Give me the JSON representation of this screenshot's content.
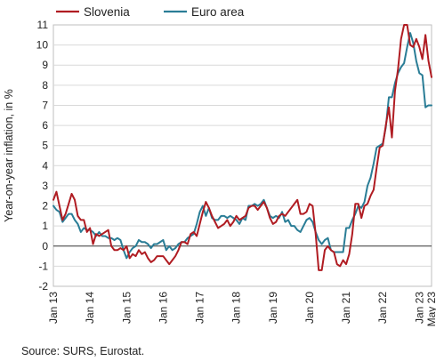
{
  "chart_data": {
    "type": "line",
    "ylabel": "Year-on-year inflation, in %",
    "ylim": [
      -2,
      11
    ],
    "yticks": [
      -2,
      -1,
      0,
      1,
      2,
      3,
      4,
      5,
      6,
      7,
      8,
      9,
      10,
      11
    ],
    "xlim": [
      "2013-01",
      "2023-05"
    ],
    "xticks": [
      "Jan 13",
      "Jan 14",
      "Jan 15",
      "Jan 16",
      "Jan 17",
      "Jan 18",
      "Jan 19",
      "Jan 20",
      "Jan 21",
      "Jan 22",
      "Jan 23",
      "May 23"
    ],
    "xtick_dates": [
      "2013-01",
      "2014-01",
      "2015-01",
      "2016-01",
      "2017-01",
      "2018-01",
      "2019-01",
      "2020-01",
      "2021-01",
      "2022-01",
      "2023-01",
      "2023-05"
    ],
    "grid": "horizontal",
    "legend_position": "top",
    "source": "Source: SURS, Eurostat.",
    "series": [
      {
        "name": "Slovenia",
        "color": "#b01c22",
        "points": [
          [
            "2013-01",
            2.3
          ],
          [
            "2013-02",
            2.7
          ],
          [
            "2013-03",
            2.0
          ],
          [
            "2013-04",
            1.3
          ],
          [
            "2013-05",
            1.6
          ],
          [
            "2013-06",
            2.1
          ],
          [
            "2013-07",
            2.6
          ],
          [
            "2013-08",
            2.3
          ],
          [
            "2013-09",
            1.5
          ],
          [
            "2013-10",
            1.3
          ],
          [
            "2013-11",
            1.3
          ],
          [
            "2013-12",
            0.7
          ],
          [
            "2014-01",
            0.9
          ],
          [
            "2014-02",
            0.1
          ],
          [
            "2014-03",
            0.6
          ],
          [
            "2014-04",
            0.5
          ],
          [
            "2014-05",
            0.6
          ],
          [
            "2014-06",
            0.7
          ],
          [
            "2014-07",
            0.8
          ],
          [
            "2014-08",
            0.0
          ],
          [
            "2014-09",
            -0.2
          ],
          [
            "2014-10",
            -0.2
          ],
          [
            "2014-11",
            -0.1
          ],
          [
            "2014-12",
            -0.2
          ],
          [
            "2015-01",
            0.0
          ],
          [
            "2015-02",
            -0.6
          ],
          [
            "2015-03",
            -0.4
          ],
          [
            "2015-04",
            -0.5
          ],
          [
            "2015-05",
            -0.2
          ],
          [
            "2015-06",
            -0.4
          ],
          [
            "2015-07",
            -0.3
          ],
          [
            "2015-08",
            -0.6
          ],
          [
            "2015-09",
            -0.8
          ],
          [
            "2015-10",
            -0.7
          ],
          [
            "2015-11",
            -0.5
          ],
          [
            "2015-12",
            -0.5
          ],
          [
            "2016-01",
            -0.5
          ],
          [
            "2016-02",
            -0.7
          ],
          [
            "2016-03",
            -0.9
          ],
          [
            "2016-04",
            -0.7
          ],
          [
            "2016-05",
            -0.5
          ],
          [
            "2016-06",
            -0.2
          ],
          [
            "2016-07",
            0.2
          ],
          [
            "2016-08",
            0.2
          ],
          [
            "2016-09",
            0.1
          ],
          [
            "2016-10",
            0.6
          ],
          [
            "2016-11",
            0.7
          ],
          [
            "2016-12",
            0.5
          ],
          [
            "2017-01",
            1.1
          ],
          [
            "2017-02",
            1.7
          ],
          [
            "2017-03",
            2.2
          ],
          [
            "2017-04",
            1.9
          ],
          [
            "2017-05",
            1.5
          ],
          [
            "2017-06",
            1.2
          ],
          [
            "2017-07",
            0.9
          ],
          [
            "2017-08",
            1.0
          ],
          [
            "2017-09",
            1.1
          ],
          [
            "2017-10",
            1.3
          ],
          [
            "2017-11",
            1.0
          ],
          [
            "2017-12",
            1.2
          ],
          [
            "2018-01",
            1.5
          ],
          [
            "2018-02",
            1.3
          ],
          [
            "2018-03",
            1.4
          ],
          [
            "2018-04",
            1.5
          ],
          [
            "2018-05",
            1.9
          ],
          [
            "2018-06",
            2.0
          ],
          [
            "2018-07",
            2.0
          ],
          [
            "2018-08",
            1.8
          ],
          [
            "2018-09",
            2.0
          ],
          [
            "2018-10",
            2.2
          ],
          [
            "2018-11",
            1.9
          ],
          [
            "2018-12",
            1.4
          ],
          [
            "2019-01",
            1.1
          ],
          [
            "2019-02",
            1.2
          ],
          [
            "2019-03",
            1.5
          ],
          [
            "2019-04",
            1.6
          ],
          [
            "2019-05",
            1.5
          ],
          [
            "2019-06",
            1.7
          ],
          [
            "2019-07",
            1.9
          ],
          [
            "2019-08",
            2.1
          ],
          [
            "2019-09",
            2.3
          ],
          [
            "2019-10",
            1.6
          ],
          [
            "2019-11",
            1.6
          ],
          [
            "2019-12",
            1.7
          ],
          [
            "2020-01",
            2.1
          ],
          [
            "2020-02",
            2.0
          ],
          [
            "2020-03",
            0.6
          ],
          [
            "2020-04",
            -1.2
          ],
          [
            "2020-05",
            -1.2
          ],
          [
            "2020-06",
            -0.2
          ],
          [
            "2020-07",
            0.0
          ],
          [
            "2020-08",
            -0.2
          ],
          [
            "2020-09",
            -0.3
          ],
          [
            "2020-10",
            -0.9
          ],
          [
            "2020-11",
            -1.0
          ],
          [
            "2020-12",
            -0.7
          ],
          [
            "2021-01",
            -0.9
          ],
          [
            "2021-02",
            -0.4
          ],
          [
            "2021-03",
            0.6
          ],
          [
            "2021-04",
            2.1
          ],
          [
            "2021-05",
            2.1
          ],
          [
            "2021-06",
            1.4
          ],
          [
            "2021-07",
            2.0
          ],
          [
            "2021-08",
            2.1
          ],
          [
            "2021-09",
            2.5
          ],
          [
            "2021-10",
            2.8
          ],
          [
            "2021-11",
            3.9
          ],
          [
            "2021-12",
            4.9
          ],
          [
            "2022-01",
            5.0
          ],
          [
            "2022-02",
            6.0
          ],
          [
            "2022-03",
            6.9
          ],
          [
            "2022-04",
            5.4
          ],
          [
            "2022-05",
            7.7
          ],
          [
            "2022-06",
            8.8
          ],
          [
            "2022-07",
            10.3
          ],
          [
            "2022-08",
            11.0
          ],
          [
            "2022-09",
            11.0
          ],
          [
            "2022-10",
            10.0
          ],
          [
            "2022-11",
            9.9
          ],
          [
            "2022-12",
            10.3
          ],
          [
            "2023-01",
            9.9
          ],
          [
            "2023-02",
            9.3
          ],
          [
            "2023-03",
            10.5
          ],
          [
            "2023-04",
            9.2
          ],
          [
            "2023-05",
            8.4
          ]
        ]
      },
      {
        "name": "Euro area",
        "color": "#2a7d96",
        "points": [
          [
            "2013-01",
            2.0
          ],
          [
            "2013-02",
            1.8
          ],
          [
            "2013-03",
            1.7
          ],
          [
            "2013-04",
            1.2
          ],
          [
            "2013-05",
            1.4
          ],
          [
            "2013-06",
            1.6
          ],
          [
            "2013-07",
            1.6
          ],
          [
            "2013-08",
            1.3
          ],
          [
            "2013-09",
            1.1
          ],
          [
            "2013-10",
            0.7
          ],
          [
            "2013-11",
            0.9
          ],
          [
            "2013-12",
            0.8
          ],
          [
            "2014-01",
            0.8
          ],
          [
            "2014-02",
            0.7
          ],
          [
            "2014-03",
            0.5
          ],
          [
            "2014-04",
            0.7
          ],
          [
            "2014-05",
            0.5
          ],
          [
            "2014-06",
            0.5
          ],
          [
            "2014-07",
            0.4
          ],
          [
            "2014-08",
            0.4
          ],
          [
            "2014-09",
            0.3
          ],
          [
            "2014-10",
            0.4
          ],
          [
            "2014-11",
            0.3
          ],
          [
            "2014-12",
            -0.2
          ],
          [
            "2015-01",
            -0.6
          ],
          [
            "2015-02",
            -0.3
          ],
          [
            "2015-03",
            -0.1
          ],
          [
            "2015-04",
            0.0
          ],
          [
            "2015-05",
            0.3
          ],
          [
            "2015-06",
            0.2
          ],
          [
            "2015-07",
            0.2
          ],
          [
            "2015-08",
            0.1
          ],
          [
            "2015-09",
            -0.1
          ],
          [
            "2015-10",
            0.1
          ],
          [
            "2015-11",
            0.1
          ],
          [
            "2015-12",
            0.2
          ],
          [
            "2016-01",
            0.3
          ],
          [
            "2016-02",
            -0.2
          ],
          [
            "2016-03",
            0.0
          ],
          [
            "2016-04",
            -0.2
          ],
          [
            "2016-05",
            -0.1
          ],
          [
            "2016-06",
            0.1
          ],
          [
            "2016-07",
            0.2
          ],
          [
            "2016-08",
            0.2
          ],
          [
            "2016-09",
            0.4
          ],
          [
            "2016-10",
            0.5
          ],
          [
            "2016-11",
            0.6
          ],
          [
            "2016-12",
            1.1
          ],
          [
            "2017-01",
            1.7
          ],
          [
            "2017-02",
            2.0
          ],
          [
            "2017-03",
            1.5
          ],
          [
            "2017-04",
            1.9
          ],
          [
            "2017-05",
            1.4
          ],
          [
            "2017-06",
            1.3
          ],
          [
            "2017-07",
            1.3
          ],
          [
            "2017-08",
            1.5
          ],
          [
            "2017-09",
            1.5
          ],
          [
            "2017-10",
            1.4
          ],
          [
            "2017-11",
            1.5
          ],
          [
            "2017-12",
            1.4
          ],
          [
            "2018-01",
            1.3
          ],
          [
            "2018-02",
            1.1
          ],
          [
            "2018-03",
            1.4
          ],
          [
            "2018-04",
            1.3
          ],
          [
            "2018-05",
            2.0
          ],
          [
            "2018-06",
            2.0
          ],
          [
            "2018-07",
            2.1
          ],
          [
            "2018-08",
            2.0
          ],
          [
            "2018-09",
            2.1
          ],
          [
            "2018-10",
            2.3
          ],
          [
            "2018-11",
            1.9
          ],
          [
            "2018-12",
            1.5
          ],
          [
            "2019-01",
            1.4
          ],
          [
            "2019-02",
            1.5
          ],
          [
            "2019-03",
            1.4
          ],
          [
            "2019-04",
            1.7
          ],
          [
            "2019-05",
            1.2
          ],
          [
            "2019-06",
            1.3
          ],
          [
            "2019-07",
            1.0
          ],
          [
            "2019-08",
            1.0
          ],
          [
            "2019-09",
            0.8
          ],
          [
            "2019-10",
            0.7
          ],
          [
            "2019-11",
            1.0
          ],
          [
            "2019-12",
            1.3
          ],
          [
            "2020-01",
            1.4
          ],
          [
            "2020-02",
            1.2
          ],
          [
            "2020-03",
            0.7
          ],
          [
            "2020-04",
            0.3
          ],
          [
            "2020-05",
            0.1
          ],
          [
            "2020-06",
            0.3
          ],
          [
            "2020-07",
            0.4
          ],
          [
            "2020-08",
            -0.2
          ],
          [
            "2020-09",
            -0.3
          ],
          [
            "2020-10",
            -0.3
          ],
          [
            "2020-11",
            -0.3
          ],
          [
            "2020-12",
            -0.3
          ],
          [
            "2021-01",
            0.9
          ],
          [
            "2021-02",
            0.9
          ],
          [
            "2021-03",
            1.3
          ],
          [
            "2021-04",
            1.6
          ],
          [
            "2021-05",
            2.0
          ],
          [
            "2021-06",
            1.9
          ],
          [
            "2021-07",
            2.2
          ],
          [
            "2021-08",
            3.0
          ],
          [
            "2021-09",
            3.4
          ],
          [
            "2021-10",
            4.1
          ],
          [
            "2021-11",
            4.9
          ],
          [
            "2021-12",
            5.0
          ],
          [
            "2022-01",
            5.1
          ],
          [
            "2022-02",
            5.9
          ],
          [
            "2022-03",
            7.4
          ],
          [
            "2022-04",
            7.4
          ],
          [
            "2022-05",
            8.1
          ],
          [
            "2022-06",
            8.6
          ],
          [
            "2022-07",
            8.9
          ],
          [
            "2022-08",
            9.1
          ],
          [
            "2022-09",
            9.9
          ],
          [
            "2022-10",
            10.6
          ],
          [
            "2022-11",
            10.1
          ],
          [
            "2022-12",
            9.2
          ],
          [
            "2023-01",
            8.6
          ],
          [
            "2023-02",
            8.5
          ],
          [
            "2023-03",
            6.9
          ],
          [
            "2023-04",
            7.0
          ],
          [
            "2023-05",
            7.0
          ]
        ]
      }
    ]
  }
}
